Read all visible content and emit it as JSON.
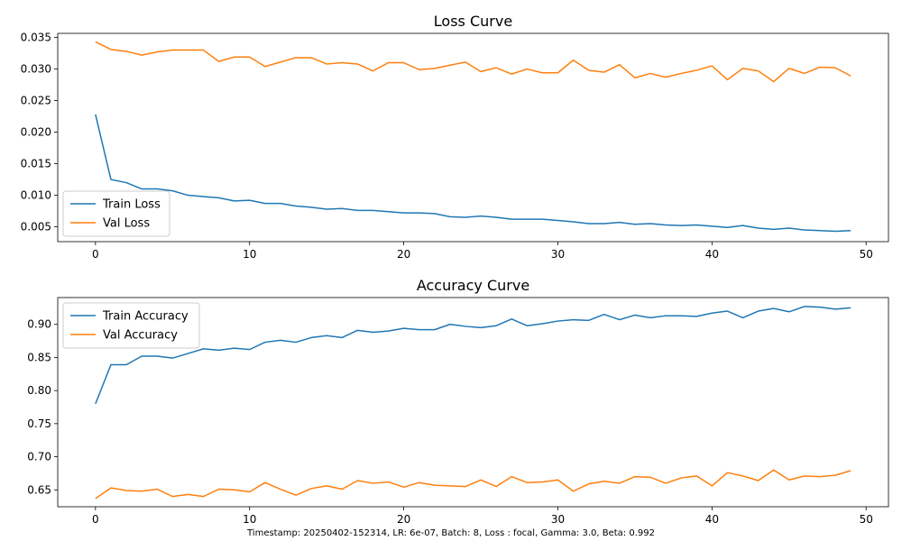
{
  "footer": "Timestamp: 20250402-152314, LR: 6e-07, Batch: 8, Loss : focal, Gamma: 3.0, Beta: 0.992",
  "colors": {
    "series1": "#1f77b4",
    "series2": "#ff7f0e"
  },
  "chart_data": [
    {
      "type": "line",
      "title": "Loss Curve",
      "xlabel": "",
      "ylabel": "",
      "xlim": [
        -2.45,
        51.45
      ],
      "ylim": [
        0.00265,
        0.03565
      ],
      "xticks": [
        0,
        10,
        20,
        30,
        40,
        50
      ],
      "yticks": [
        0.005,
        0.01,
        0.015,
        0.02,
        0.025,
        0.03,
        0.035
      ],
      "ytick_decimals": 3,
      "grid": false,
      "legend": "lower-left",
      "x": [
        0,
        1,
        2,
        3,
        4,
        5,
        6,
        7,
        8,
        9,
        10,
        11,
        12,
        13,
        14,
        15,
        16,
        17,
        18,
        19,
        20,
        21,
        22,
        23,
        24,
        25,
        26,
        27,
        28,
        29,
        30,
        31,
        32,
        33,
        34,
        35,
        36,
        37,
        38,
        39,
        40,
        41,
        42,
        43,
        44,
        45,
        46,
        47,
        48,
        49
      ],
      "series": [
        {
          "name": "Train Loss",
          "values": [
            0.0228,
            0.0125,
            0.012,
            0.011,
            0.011,
            0.0107,
            0.01,
            0.0098,
            0.0096,
            0.0091,
            0.0092,
            0.0087,
            0.0087,
            0.0083,
            0.0081,
            0.0078,
            0.0079,
            0.0076,
            0.0076,
            0.0074,
            0.0072,
            0.0072,
            0.0071,
            0.0066,
            0.0065,
            0.0067,
            0.0065,
            0.0062,
            0.0062,
            0.0062,
            0.006,
            0.0058,
            0.0055,
            0.0055,
            0.0057,
            0.0054,
            0.0055,
            0.0053,
            0.0052,
            0.0053,
            0.0051,
            0.0049,
            0.0052,
            0.0048,
            0.0046,
            0.0048,
            0.0045,
            0.0044,
            0.0043,
            0.0044
          ]
        },
        {
          "name": "Val Loss",
          "values": [
            0.0343,
            0.0331,
            0.0328,
            0.0322,
            0.0327,
            0.033,
            0.033,
            0.033,
            0.0312,
            0.0319,
            0.0319,
            0.0304,
            0.0311,
            0.0318,
            0.0318,
            0.0308,
            0.031,
            0.0308,
            0.0297,
            0.031,
            0.031,
            0.0299,
            0.0301,
            0.0306,
            0.0311,
            0.0296,
            0.0302,
            0.0292,
            0.03,
            0.0294,
            0.0294,
            0.0314,
            0.0298,
            0.0295,
            0.0307,
            0.0286,
            0.0293,
            0.0287,
            0.0293,
            0.0298,
            0.0305,
            0.0283,
            0.0301,
            0.0297,
            0.028,
            0.0301,
            0.0293,
            0.0303,
            0.0302,
            0.0289
          ]
        }
      ]
    },
    {
      "type": "line",
      "title": "Accuracy Curve",
      "xlabel": "",
      "ylabel": "",
      "xlim": [
        -2.45,
        51.45
      ],
      "ylim": [
        0.6245,
        0.9405
      ],
      "xticks": [
        0,
        10,
        20,
        30,
        40,
        50
      ],
      "yticks": [
        0.65,
        0.7,
        0.75,
        0.8,
        0.85,
        0.9
      ],
      "ytick_decimals": 2,
      "grid": false,
      "legend": "upper-left",
      "x": [
        0,
        1,
        2,
        3,
        4,
        5,
        6,
        7,
        8,
        9,
        10,
        11,
        12,
        13,
        14,
        15,
        16,
        17,
        18,
        19,
        20,
        21,
        22,
        23,
        24,
        25,
        26,
        27,
        28,
        29,
        30,
        31,
        32,
        33,
        34,
        35,
        36,
        37,
        38,
        39,
        40,
        41,
        42,
        43,
        44,
        45,
        46,
        47,
        48,
        49
      ],
      "series": [
        {
          "name": "Train Accuracy",
          "values": [
            0.78,
            0.839,
            0.839,
            0.852,
            0.852,
            0.849,
            0.856,
            0.863,
            0.861,
            0.864,
            0.862,
            0.873,
            0.876,
            0.873,
            0.88,
            0.883,
            0.88,
            0.891,
            0.888,
            0.89,
            0.894,
            0.892,
            0.892,
            0.9,
            0.897,
            0.895,
            0.898,
            0.908,
            0.898,
            0.901,
            0.905,
            0.907,
            0.906,
            0.915,
            0.907,
            0.914,
            0.91,
            0.913,
            0.913,
            0.912,
            0.917,
            0.92,
            0.91,
            0.92,
            0.924,
            0.919,
            0.927,
            0.926,
            0.923,
            0.925
          ]
        },
        {
          "name": "Val Accuracy",
          "values": [
            0.637,
            0.653,
            0.649,
            0.648,
            0.651,
            0.64,
            0.643,
            0.64,
            0.651,
            0.65,
            0.647,
            0.661,
            0.651,
            0.642,
            0.652,
            0.656,
            0.651,
            0.664,
            0.66,
            0.662,
            0.654,
            0.661,
            0.657,
            0.656,
            0.655,
            0.665,
            0.655,
            0.67,
            0.661,
            0.662,
            0.665,
            0.648,
            0.659,
            0.663,
            0.66,
            0.67,
            0.669,
            0.66,
            0.668,
            0.671,
            0.656,
            0.676,
            0.671,
            0.664,
            0.68,
            0.665,
            0.671,
            0.67,
            0.672,
            0.679
          ]
        }
      ]
    }
  ]
}
